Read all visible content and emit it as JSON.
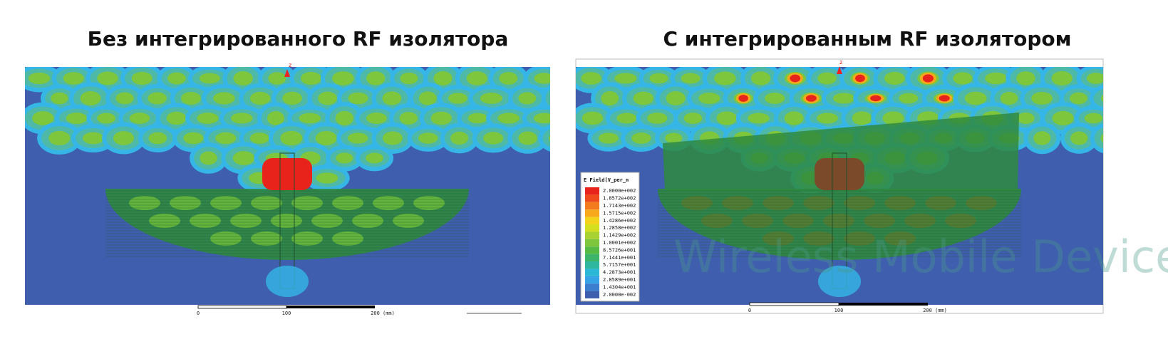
{
  "panels": [
    {
      "title": "Без интегрированного RF изолятора",
      "axis_label": "z",
      "scale_labels": [
        "0",
        "100",
        "200 (mm)"
      ]
    },
    {
      "title": "С интегрированным RF изолятором",
      "axis_label": "z",
      "scale_labels": [
        "0",
        "100",
        "200 (mm)"
      ],
      "legend": {
        "title": "E Field[V_per_n",
        "entries": [
          {
            "label": "2.0000e+002",
            "color": "#e8231c"
          },
          {
            "label": "1.8572e+002",
            "color": "#ee4a1b"
          },
          {
            "label": "1.7143e+002",
            "color": "#f37a1d"
          },
          {
            "label": "1.5715e+002",
            "color": "#f7a81b"
          },
          {
            "label": "1.4286e+002",
            "color": "#f3d21a"
          },
          {
            "label": "1.2858e+002",
            "color": "#d4df1f"
          },
          {
            "label": "1.1429e+002",
            "color": "#a9d12f"
          },
          {
            "label": "1.0001e+002",
            "color": "#7ec63b"
          },
          {
            "label": "8.5726e+001",
            "color": "#55bb45"
          },
          {
            "label": "7.1441e+001",
            "color": "#3cb469"
          },
          {
            "label": "5.7157e+001",
            "color": "#2fb7a0"
          },
          {
            "label": "4.2873e+001",
            "color": "#2bb7d6"
          },
          {
            "label": "2.8589e+001",
            "color": "#35a3e6"
          },
          {
            "label": "1.4304e+001",
            "color": "#3a7fcf"
          },
          {
            "label": "2.0000e-002",
            "color": "#3f5fae"
          }
        ]
      }
    }
  ],
  "watermark": "Wireless Mobile Devices"
}
